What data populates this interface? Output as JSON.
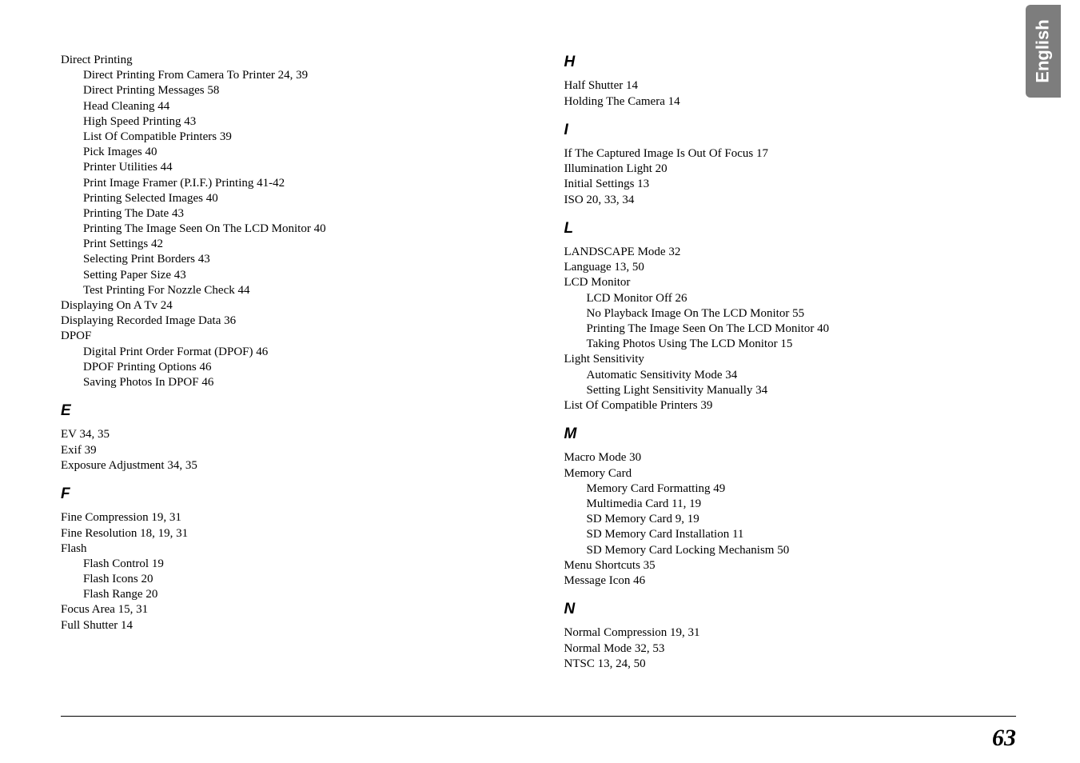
{
  "langTab": "English",
  "pageNumber": "63",
  "left": {
    "block1": [
      {
        "t": "Direct Printing",
        "s": false
      },
      {
        "t": "Direct Printing From Camera To Printer  24, 39",
        "s": true
      },
      {
        "t": "Direct Printing Messages  58",
        "s": true
      },
      {
        "t": "Head Cleaning  44",
        "s": true
      },
      {
        "t": "High Speed Printing  43",
        "s": true
      },
      {
        "t": "List Of Compatible Printers  39",
        "s": true
      },
      {
        "t": "Pick Images  40",
        "s": true
      },
      {
        "t": "Printer Utilities  44",
        "s": true
      },
      {
        "t": "Print Image Framer (P.I.F.) Printing  41-42",
        "s": true
      },
      {
        "t": "Printing Selected Images  40",
        "s": true
      },
      {
        "t": "Printing The Date  43",
        "s": true
      },
      {
        "t": "Printing The Image Seen On The LCD Monitor  40",
        "s": true
      },
      {
        "t": "Print Settings  42",
        "s": true
      },
      {
        "t": "Selecting Print Borders  43",
        "s": true
      },
      {
        "t": "Setting Paper Size  43",
        "s": true
      },
      {
        "t": "Test Printing For Nozzle Check  44",
        "s": true
      },
      {
        "t": "Displaying On A Tv  24",
        "s": false
      },
      {
        "t": "Displaying Recorded Image Data  36",
        "s": false
      },
      {
        "t": "DPOF",
        "s": false
      },
      {
        "t": "Digital Print Order Format (DPOF)  46",
        "s": true
      },
      {
        "t": "DPOF Printing Options  46",
        "s": true
      },
      {
        "t": "Saving Photos In DPOF  46",
        "s": true
      }
    ],
    "E_head": "E",
    "E": [
      {
        "t": "EV  34, 35",
        "s": false
      },
      {
        "t": "Exif  39",
        "s": false
      },
      {
        "t": "Exposure Adjustment  34, 35",
        "s": false
      }
    ],
    "F_head": "F",
    "F": [
      {
        "t": "Fine Compression  19, 31",
        "s": false
      },
      {
        "t": "Fine Resolution  18, 19, 31",
        "s": false
      },
      {
        "t": "Flash",
        "s": false
      },
      {
        "t": "Flash Control  19",
        "s": true
      },
      {
        "t": "Flash Icons  20",
        "s": true
      },
      {
        "t": "Flash Range  20",
        "s": true
      },
      {
        "t": "Focus Area  15, 31",
        "s": false
      },
      {
        "t": "Full Shutter  14",
        "s": false
      }
    ]
  },
  "right": {
    "H_head": "H",
    "H": [
      {
        "t": "Half Shutter  14",
        "s": false
      },
      {
        "t": "Holding The Camera  14",
        "s": false
      }
    ],
    "I_head": "I",
    "I": [
      {
        "t": "If The Captured Image Is Out Of Focus  17",
        "s": false
      },
      {
        "t": "Illumination Light  20",
        "s": false
      },
      {
        "t": "Initial Settings  13",
        "s": false
      },
      {
        "t": "ISO  20, 33, 34",
        "s": false
      }
    ],
    "L_head": "L",
    "L": [
      {
        "t": "LANDSCAPE Mode  32",
        "s": false
      },
      {
        "t": "Language  13, 50",
        "s": false
      },
      {
        "t": "LCD Monitor",
        "s": false
      },
      {
        "t": "LCD Monitor Off  26",
        "s": true
      },
      {
        "t": "No Playback Image On The LCD Monitor  55",
        "s": true
      },
      {
        "t": "Printing The Image Seen On The LCD Monitor  40",
        "s": true
      },
      {
        "t": "Taking Photos Using The LCD Monitor  15",
        "s": true
      },
      {
        "t": "Light Sensitivity",
        "s": false
      },
      {
        "t": "Automatic Sensitivity Mode  34",
        "s": true
      },
      {
        "t": "Setting Light Sensitivity Manually  34",
        "s": true
      },
      {
        "t": "List Of Compatible Printers  39",
        "s": false
      }
    ],
    "M_head": "M",
    "M": [
      {
        "t": "Macro Mode  30",
        "s": false
      },
      {
        "t": "Memory Card",
        "s": false
      },
      {
        "t": "Memory Card Formatting  49",
        "s": true
      },
      {
        "t": "Multimedia Card  11, 19",
        "s": true
      },
      {
        "t": "SD Memory Card  9, 19",
        "s": true
      },
      {
        "t": "SD Memory Card Installation  11",
        "s": true
      },
      {
        "t": "SD Memory Card Locking Mechanism  50",
        "s": true
      },
      {
        "t": "Menu Shortcuts  35",
        "s": false
      },
      {
        "t": "Message Icon  46",
        "s": false
      }
    ],
    "N_head": "N",
    "N": [
      {
        "t": "Normal Compression  19, 31",
        "s": false
      },
      {
        "t": "Normal Mode  32, 53",
        "s": false
      },
      {
        "t": "NTSC  13, 24, 50",
        "s": false
      }
    ]
  }
}
